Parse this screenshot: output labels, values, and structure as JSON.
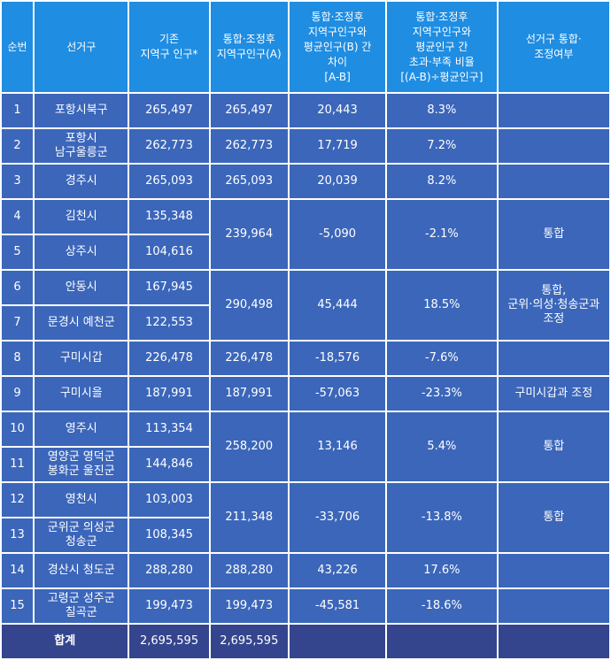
{
  "headers": [
    "순번",
    "선거구",
    "기존\n지역구 인구*",
    "통합·조정후\n지역구인구(A)",
    "통합·조정후\n지역구인구와\n평균인구(B) 간\n차이\n[A-B]",
    "통합·조정후\n지역구인구와\n평균인구 간\n초과·부족 비율\n[(A-B)÷평균인구]",
    "선거구 통합·\n조정여부"
  ],
  "rows": [
    {
      "no": "1",
      "district": "포항시북구",
      "pop": "265,497"
    },
    {
      "no": "2",
      "district": "포항시\n남구울릉군",
      "pop": "262,773"
    },
    {
      "no": "3",
      "district": "경주시",
      "pop": "265,093"
    },
    {
      "no": "4",
      "district": "김천시",
      "pop": "135,348"
    },
    {
      "no": "5",
      "district": "상주시",
      "pop": "104,616"
    },
    {
      "no": "6",
      "district": "안동시",
      "pop": "167,945"
    },
    {
      "no": "7",
      "district": "문경시 예천군",
      "pop": "122,553"
    },
    {
      "no": "8",
      "district": "구미시갑",
      "pop": "226,478"
    },
    {
      "no": "9",
      "district": "구미시을",
      "pop": "187,991"
    },
    {
      "no": "10",
      "district": "영주시",
      "pop": "113,354"
    },
    {
      "no": "11",
      "district": "영양군 영덕군\n봉화군 울진군",
      "pop": "144,846"
    },
    {
      "no": "12",
      "district": "영천시",
      "pop": "103,003"
    },
    {
      "no": "13",
      "district": "군위군 의성군\n청송군",
      "pop": "108,345"
    },
    {
      "no": "14",
      "district": "경산시 청도군",
      "pop": "288,280"
    },
    {
      "no": "15",
      "district": "고령군 성주군\n칠곡군",
      "pop": "199,473"
    }
  ],
  "groups": [
    {
      "adjusted": "265,497",
      "diff": "20,443",
      "ratio": "8.3%",
      "status": ""
    },
    {
      "adjusted": "262,773",
      "diff": "17,719",
      "ratio": "7.2%",
      "status": ""
    },
    {
      "adjusted": "265,093",
      "diff": "20,039",
      "ratio": "8.2%",
      "status": ""
    },
    {
      "adjusted": "239,964",
      "diff": "-5,090",
      "ratio": "-2.1%",
      "status": "통합"
    },
    {
      "adjusted": "290,498",
      "diff": "45,444",
      "ratio": "18.5%",
      "status": "통합,\n군위·의성·청송군과\n조정"
    },
    {
      "adjusted": "226,478",
      "diff": "-18,576",
      "ratio": "-7.6%",
      "status": ""
    },
    {
      "adjusted": "187,991",
      "diff": "-57,063",
      "ratio": "-23.3%",
      "status": "구미시갑과 조정"
    },
    {
      "adjusted": "258,200",
      "diff": "13,146",
      "ratio": "5.4%",
      "status": "통합"
    },
    {
      "adjusted": "211,348",
      "diff": "-33,706",
      "ratio": "-13.8%",
      "status": "통합"
    },
    {
      "adjusted": "288,280",
      "diff": "43,226",
      "ratio": "17.6%",
      "status": ""
    },
    {
      "adjusted": "199,473",
      "diff": "-45,581",
      "ratio": "-18.6%",
      "status": ""
    }
  ],
  "total": {
    "label": "합계",
    "pop": "2,695,595",
    "adjusted": "2,695,595"
  }
}
